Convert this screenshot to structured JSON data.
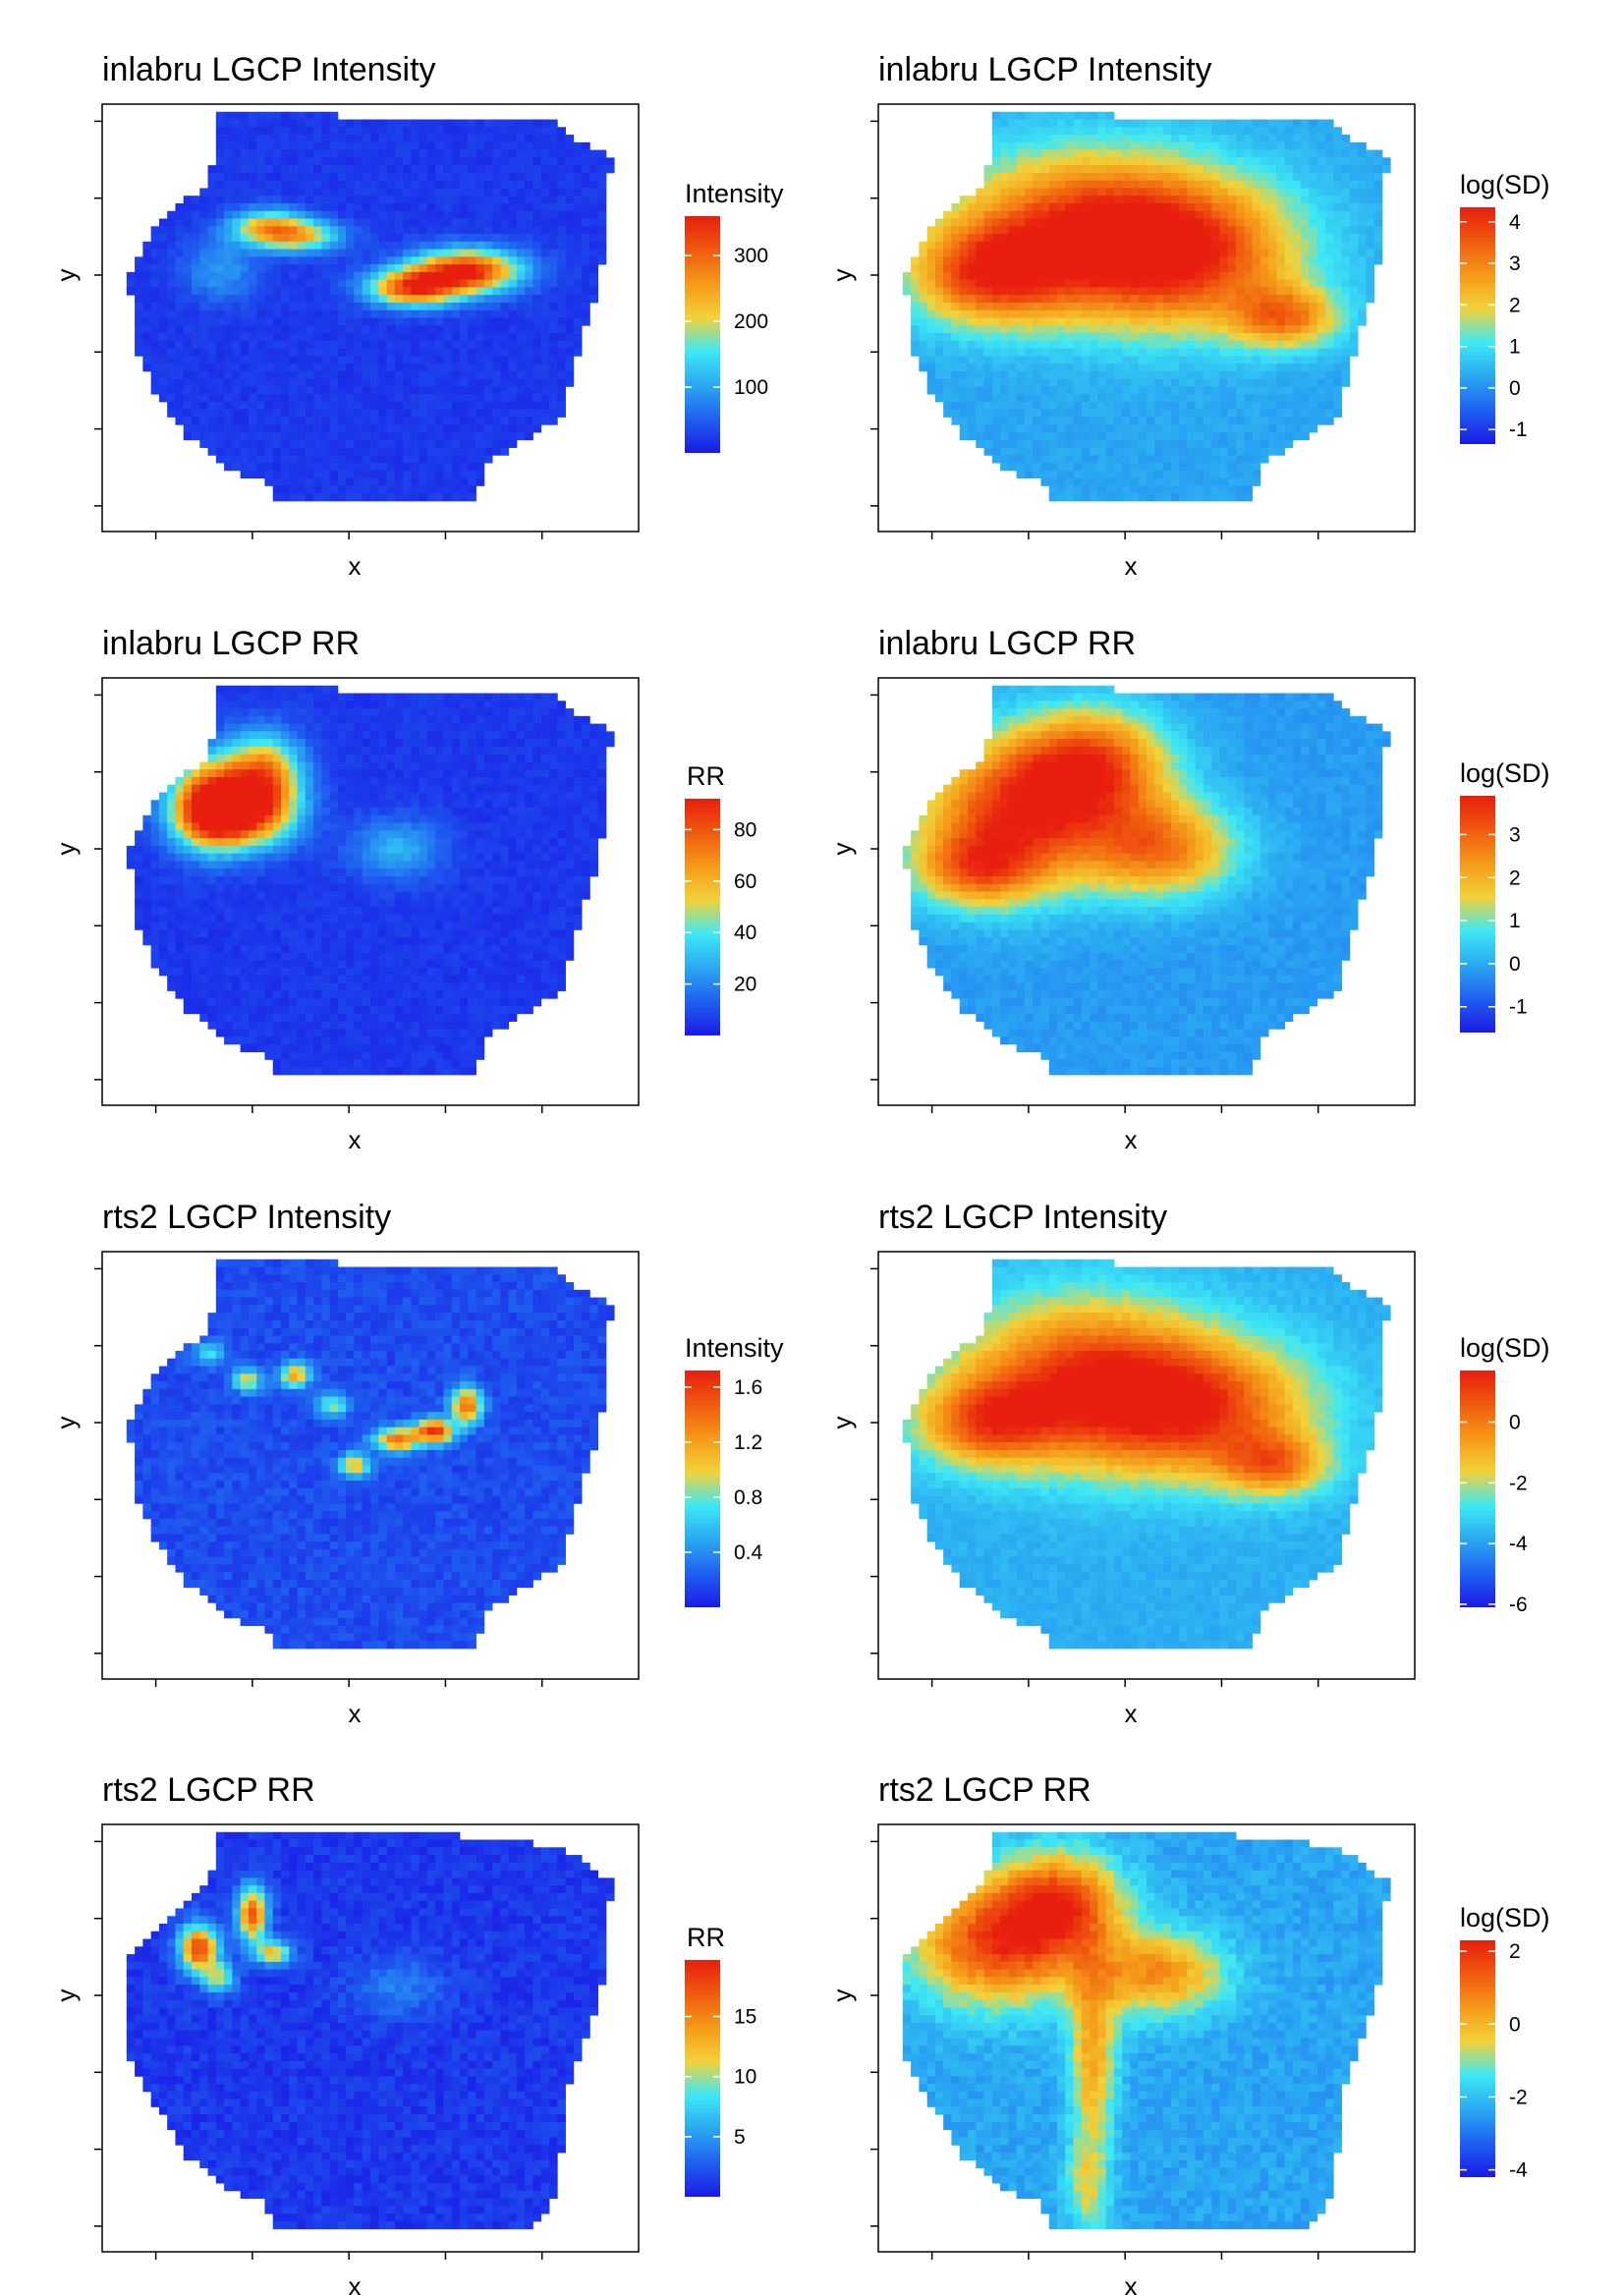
{
  "colors": {
    "scale": [
      "#1a1ae6",
      "#1f60f0",
      "#2aa8f2",
      "#3ee8f5",
      "#f2d23a",
      "#f59a1a",
      "#f05a0e",
      "#e81e0e"
    ],
    "panel_border": "#000000",
    "background": "#ffffff"
  },
  "chart_data": [
    {
      "type": "heatmap",
      "title": "inlabru LGCP Intensity",
      "xlabel": "x",
      "ylabel": "y",
      "legend": {
        "title": "Intensity",
        "ticks": [
          100,
          200,
          300
        ],
        "range": [
          0,
          360
        ],
        "placement": "right"
      },
      "surface": {
        "shape": "A",
        "background_level": 0.06,
        "hotspots": [
          {
            "x": 0.68,
            "y": 0.39,
            "amp": 0.92,
            "sx": 0.07,
            "sy": 0.035
          },
          {
            "x": 0.58,
            "y": 0.43,
            "amp": 0.8,
            "sx": 0.06,
            "sy": 0.03
          },
          {
            "x": 0.31,
            "y": 0.29,
            "amp": 0.6,
            "sx": 0.05,
            "sy": 0.03
          },
          {
            "x": 0.38,
            "y": 0.31,
            "amp": 0.45,
            "sx": 0.05,
            "sy": 0.025
          },
          {
            "x": 0.22,
            "y": 0.39,
            "amp": 0.2,
            "sx": 0.05,
            "sy": 0.05
          }
        ]
      }
    },
    {
      "type": "heatmap",
      "title": "inlabru LGCP Intensity",
      "xlabel": "x",
      "ylabel": "y",
      "legend": {
        "title": "log(SD)",
        "ticks": [
          -1,
          0,
          1,
          2,
          3,
          4
        ],
        "range": [
          -1.35,
          4.35
        ],
        "placement": "right"
      },
      "surface": {
        "shape": "A",
        "background_level": 0.28,
        "hotspots": [
          {
            "x": 0.38,
            "y": 0.3,
            "amp": 0.62,
            "sx": 0.17,
            "sy": 0.13
          },
          {
            "x": 0.58,
            "y": 0.35,
            "amp": 0.55,
            "sx": 0.15,
            "sy": 0.12
          },
          {
            "x": 0.2,
            "y": 0.4,
            "amp": 0.5,
            "sx": 0.1,
            "sy": 0.08
          },
          {
            "x": 0.76,
            "y": 0.5,
            "amp": 0.45,
            "sx": 0.07,
            "sy": 0.05
          }
        ]
      }
    },
    {
      "type": "heatmap",
      "title": "inlabru LGCP RR",
      "xlabel": "x",
      "ylabel": "y",
      "legend": {
        "title": "RR",
        "ticks": [
          20,
          40,
          60,
          80
        ],
        "range": [
          0,
          92
        ],
        "placement": "right"
      },
      "surface": {
        "shape": "A",
        "background_level": 0.06,
        "hotspots": [
          {
            "x": 0.2,
            "y": 0.29,
            "amp": 0.85,
            "sx": 0.05,
            "sy": 0.07
          },
          {
            "x": 0.3,
            "y": 0.24,
            "amp": 0.8,
            "sx": 0.05,
            "sy": 0.07
          },
          {
            "x": 0.25,
            "y": 0.33,
            "amp": 0.6,
            "sx": 0.07,
            "sy": 0.05
          },
          {
            "x": 0.55,
            "y": 0.4,
            "amp": 0.25,
            "sx": 0.06,
            "sy": 0.05
          }
        ]
      }
    },
    {
      "type": "heatmap",
      "title": "inlabru LGCP RR",
      "xlabel": "x",
      "ylabel": "y",
      "legend": {
        "title": "log(SD)",
        "ticks": [
          -1,
          0,
          1,
          2,
          3
        ],
        "range": [
          -1.6,
          3.9
        ],
        "placement": "right"
      },
      "surface": {
        "shape": "A",
        "background_level": 0.26,
        "hotspots": [
          {
            "x": 0.26,
            "y": 0.32,
            "amp": 0.66,
            "sx": 0.13,
            "sy": 0.12
          },
          {
            "x": 0.4,
            "y": 0.2,
            "amp": 0.55,
            "sx": 0.1,
            "sy": 0.09
          },
          {
            "x": 0.53,
            "y": 0.4,
            "amp": 0.5,
            "sx": 0.1,
            "sy": 0.08
          },
          {
            "x": 0.18,
            "y": 0.45,
            "amp": 0.4,
            "sx": 0.08,
            "sy": 0.06
          }
        ]
      }
    },
    {
      "type": "heatmap",
      "title": "rts2 LGCP Intensity",
      "xlabel": "x",
      "ylabel": "y",
      "legend": {
        "title": "Intensity",
        "ticks": [
          0.4,
          0.8,
          1.2,
          1.6
        ],
        "range": [
          0,
          1.72
        ],
        "placement": "right"
      },
      "surface": {
        "shape": "A",
        "background_level": 0.1,
        "hotspots": [
          {
            "x": 0.62,
            "y": 0.42,
            "amp": 0.85,
            "sx": 0.025,
            "sy": 0.02
          },
          {
            "x": 0.55,
            "y": 0.44,
            "amp": 0.7,
            "sx": 0.03,
            "sy": 0.02
          },
          {
            "x": 0.68,
            "y": 0.36,
            "amp": 0.75,
            "sx": 0.02,
            "sy": 0.03
          },
          {
            "x": 0.36,
            "y": 0.29,
            "amp": 0.6,
            "sx": 0.02,
            "sy": 0.02
          },
          {
            "x": 0.27,
            "y": 0.3,
            "amp": 0.45,
            "sx": 0.02,
            "sy": 0.02
          },
          {
            "x": 0.47,
            "y": 0.5,
            "amp": 0.55,
            "sx": 0.02,
            "sy": 0.02
          },
          {
            "x": 0.43,
            "y": 0.36,
            "amp": 0.4,
            "sx": 0.02,
            "sy": 0.02
          },
          {
            "x": 0.2,
            "y": 0.24,
            "amp": 0.3,
            "sx": 0.02,
            "sy": 0.02
          }
        ]
      }
    },
    {
      "type": "heatmap",
      "title": "rts2 LGCP Intensity",
      "xlabel": "x",
      "ylabel": "y",
      "legend": {
        "title": "log(SD)",
        "ticks": [
          -6,
          -4,
          -2,
          0
        ],
        "range": [
          -6.1,
          1.7
        ],
        "placement": "right"
      },
      "surface": {
        "shape": "A",
        "background_level": 0.3,
        "hotspots": [
          {
            "x": 0.38,
            "y": 0.3,
            "amp": 0.6,
            "sx": 0.16,
            "sy": 0.13
          },
          {
            "x": 0.6,
            "y": 0.37,
            "amp": 0.55,
            "sx": 0.15,
            "sy": 0.11
          },
          {
            "x": 0.2,
            "y": 0.4,
            "amp": 0.45,
            "sx": 0.09,
            "sy": 0.07
          },
          {
            "x": 0.74,
            "y": 0.5,
            "amp": 0.4,
            "sx": 0.07,
            "sy": 0.05
          }
        ]
      }
    },
    {
      "type": "heatmap",
      "title": "rts2 LGCP RR",
      "xlabel": "x",
      "ylabel": "y",
      "legend": {
        "title": "RR",
        "ticks": [
          5,
          10,
          15
        ],
        "range": [
          0,
          19.7
        ],
        "placement": "right"
      },
      "surface": {
        "shape": "B",
        "background_level": 0.06,
        "hotspots": [
          {
            "x": 0.18,
            "y": 0.29,
            "amp": 0.85,
            "sx": 0.025,
            "sy": 0.04
          },
          {
            "x": 0.28,
            "y": 0.21,
            "amp": 0.8,
            "sx": 0.02,
            "sy": 0.045
          },
          {
            "x": 0.32,
            "y": 0.3,
            "amp": 0.55,
            "sx": 0.025,
            "sy": 0.02
          },
          {
            "x": 0.22,
            "y": 0.36,
            "amp": 0.45,
            "sx": 0.02,
            "sy": 0.025
          },
          {
            "x": 0.55,
            "y": 0.38,
            "amp": 0.15,
            "sx": 0.06,
            "sy": 0.05
          }
        ]
      }
    },
    {
      "type": "heatmap",
      "title": "rts2 LGCP RR",
      "xlabel": "x",
      "ylabel": "y",
      "legend": {
        "title": "log(SD)",
        "ticks": [
          -4,
          -2,
          0,
          2
        ],
        "range": [
          -4.2,
          2.3
        ],
        "placement": "right"
      },
      "surface": {
        "shape": "B",
        "background_level": 0.28,
        "hotspots": [
          {
            "x": 0.22,
            "y": 0.28,
            "amp": 0.62,
            "sx": 0.11,
            "sy": 0.1
          },
          {
            "x": 0.34,
            "y": 0.18,
            "amp": 0.55,
            "sx": 0.08,
            "sy": 0.08
          },
          {
            "x": 0.52,
            "y": 0.35,
            "amp": 0.45,
            "sx": 0.09,
            "sy": 0.07
          },
          {
            "x": 0.4,
            "y": 0.55,
            "amp": 0.4,
            "sx": 0.03,
            "sy": 0.15
          },
          {
            "x": 0.39,
            "y": 0.85,
            "amp": 0.25,
            "sx": 0.03,
            "sy": 0.08
          }
        ]
      }
    }
  ]
}
